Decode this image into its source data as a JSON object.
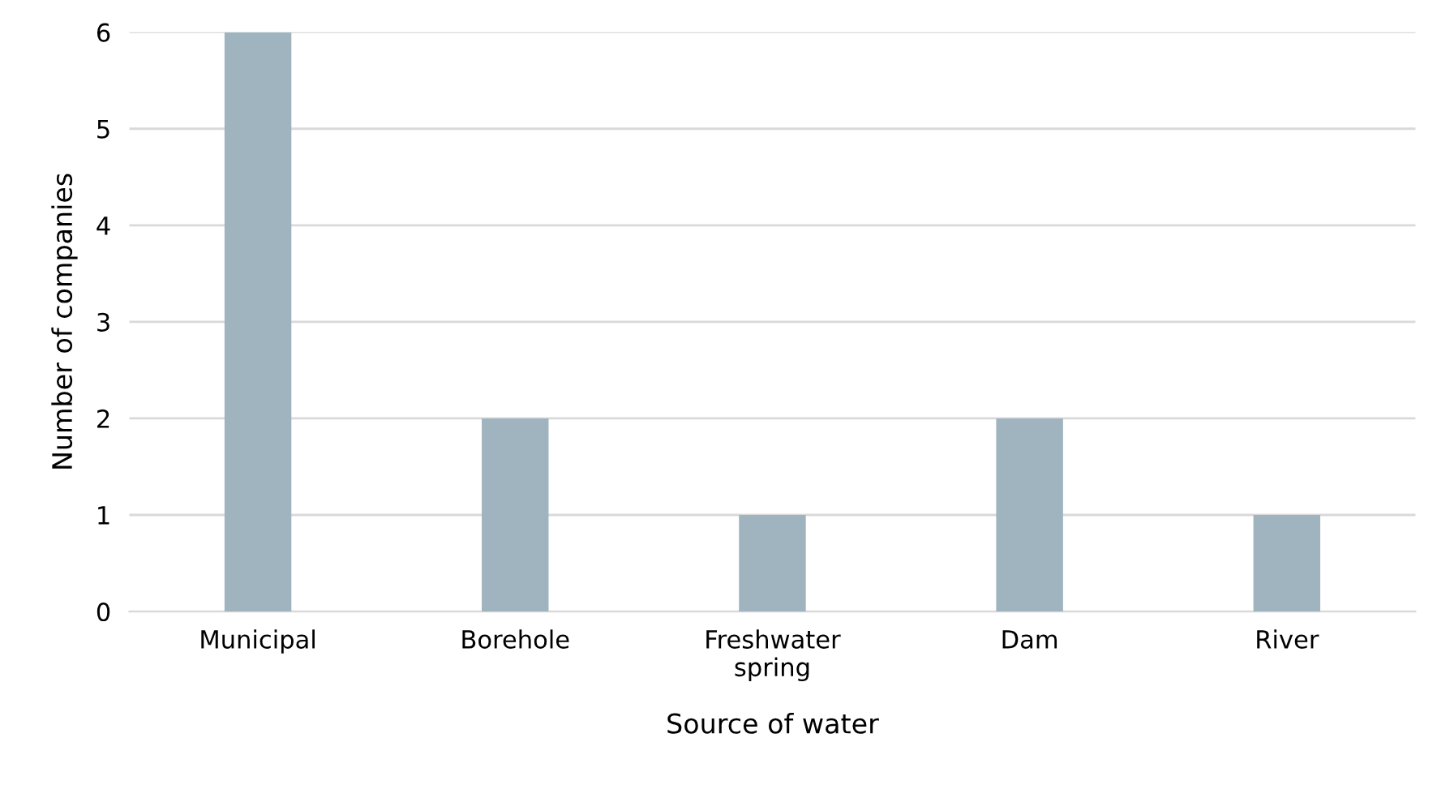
{
  "chart_data": {
    "type": "bar",
    "xlabel": "Source of water",
    "ylabel": "Number of companies",
    "categories": [
      "Municipal",
      "Borehole",
      "Freshwater\nspring",
      "Dam",
      "River"
    ],
    "values": [
      6,
      2,
      1,
      2,
      1
    ],
    "color": "#a0b4c0",
    "ylim": [
      0,
      6
    ],
    "yticks": [
      0,
      1,
      2,
      3,
      4,
      5,
      6
    ],
    "grid": "y",
    "legend": false
  }
}
